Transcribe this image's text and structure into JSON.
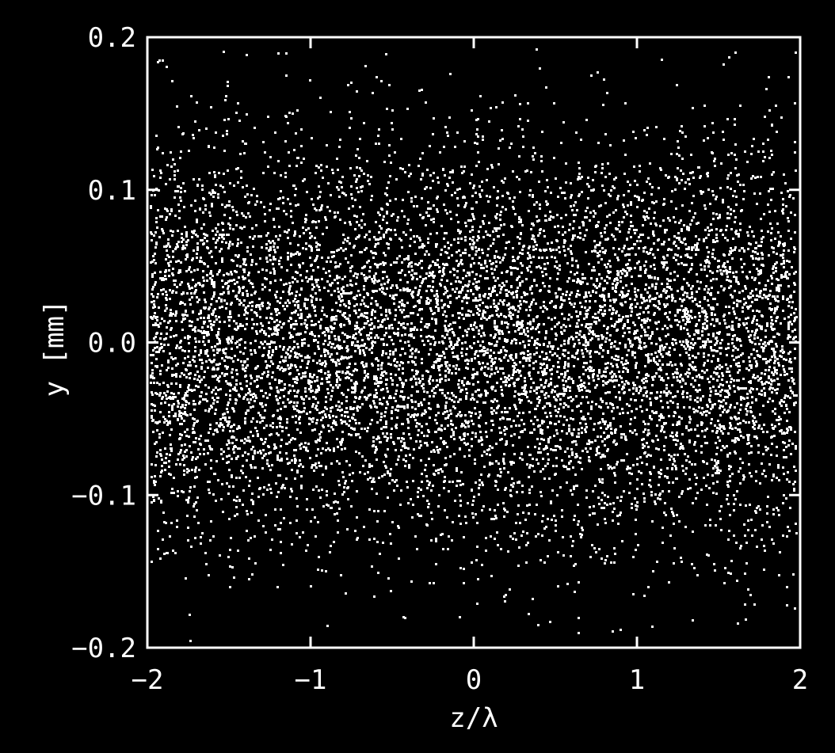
{
  "chart_data": {
    "type": "scatter",
    "title": "",
    "xlabel": "z/λ",
    "ylabel": "y [mm]",
    "xlim": [
      -2,
      2
    ],
    "ylim": [
      -0.2,
      0.2
    ],
    "xticks": [
      -2,
      -1,
      0,
      1,
      2
    ],
    "xtick_labels": [
      "−2",
      "−1",
      "0",
      "1",
      "2"
    ],
    "yticks": [
      -0.2,
      -0.1,
      0.0,
      0.1,
      0.2
    ],
    "ytick_labels": [
      "−0.2",
      "−0.1",
      "0.0",
      "0.1",
      "0.2"
    ],
    "grid": false,
    "legend": "none",
    "colors": {
      "background": "#000000",
      "foreground": "#ffffff"
    },
    "series": [
      {
        "distribution": "gaussian-in-y",
        "y_center": 0.0,
        "y_sigma": 0.065,
        "point_count": 9000
      }
    ]
  }
}
